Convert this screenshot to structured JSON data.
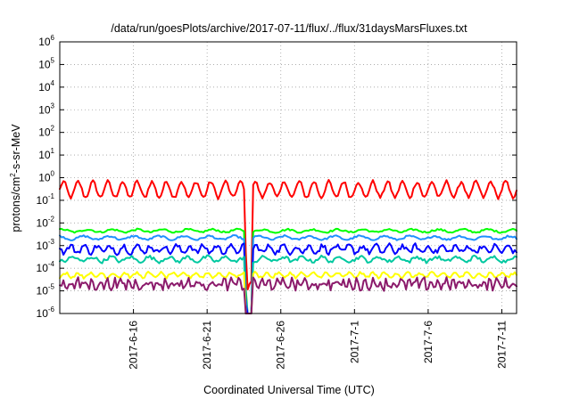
{
  "chart_data": {
    "type": "line",
    "title": "/data/run/goesPlots/archive/2017-07-11/flux/../flux/31daysMarsFluxes.txt",
    "xlabel": "Coordinated Universal Time (UTC)",
    "ylabel": "protons/cm2-s-sr-MeV",
    "ylabel_base": "protons/cm",
    "ylabel_sup": "2",
    "ylabel_rest": "-s-sr-MeV",
    "y_scale": "log",
    "ylim": [
      1e-06,
      1000000.0
    ],
    "xlim": [
      "2017-06-11",
      "2017-07-12"
    ],
    "grid": true,
    "x_ticks": [
      "2017-6-16",
      "2017-6-21",
      "2017-6-26",
      "2017-7-1",
      "2017-7-6",
      "2017-7-11"
    ],
    "y_ticks": [
      {
        "base": "10",
        "exp": "-6"
      },
      {
        "base": "10",
        "exp": "-5"
      },
      {
        "base": "10",
        "exp": "-4"
      },
      {
        "base": "10",
        "exp": "-3"
      },
      {
        "base": "10",
        "exp": "-2"
      },
      {
        "base": "10",
        "exp": "-1"
      },
      {
        "base": "10",
        "exp": "0"
      },
      {
        "base": "10",
        "exp": "1"
      },
      {
        "base": "10",
        "exp": "2"
      },
      {
        "base": "10",
        "exp": "3"
      },
      {
        "base": "10",
        "exp": "4"
      },
      {
        "base": "10",
        "exp": "5"
      },
      {
        "base": "10",
        "exp": "6"
      }
    ],
    "series": [
      {
        "color": "#ff0000",
        "level": 0.3,
        "amp": 0.35,
        "period": 1.0,
        "noise": 0.08
      },
      {
        "color": "#00ff00",
        "level": 0.0045,
        "amp": 0.06,
        "period": 1.7,
        "noise": 0.04
      },
      {
        "color": "#1e90ff",
        "level": 0.0022,
        "amp": 0.08,
        "period": 1.7,
        "noise": 0.04
      },
      {
        "color": "#0000ff",
        "level": 0.0007,
        "amp": 0.15,
        "period": 0.9,
        "noise": 0.12
      },
      {
        "color": "#00c8a0",
        "level": 0.00025,
        "amp": 0.1,
        "period": 1.3,
        "noise": 0.08
      },
      {
        "color": "#ffff00",
        "level": 5e-05,
        "amp": 0.1,
        "period": 0.8,
        "noise": 0.06
      },
      {
        "color": "#8b1a6b",
        "level": 2e-05,
        "amp": 0.15,
        "period": 0.5,
        "noise": 0.2
      }
    ],
    "dropout": {
      "start": "2017-06-23T12:00",
      "end": "2017-06-24T02:00"
    }
  }
}
